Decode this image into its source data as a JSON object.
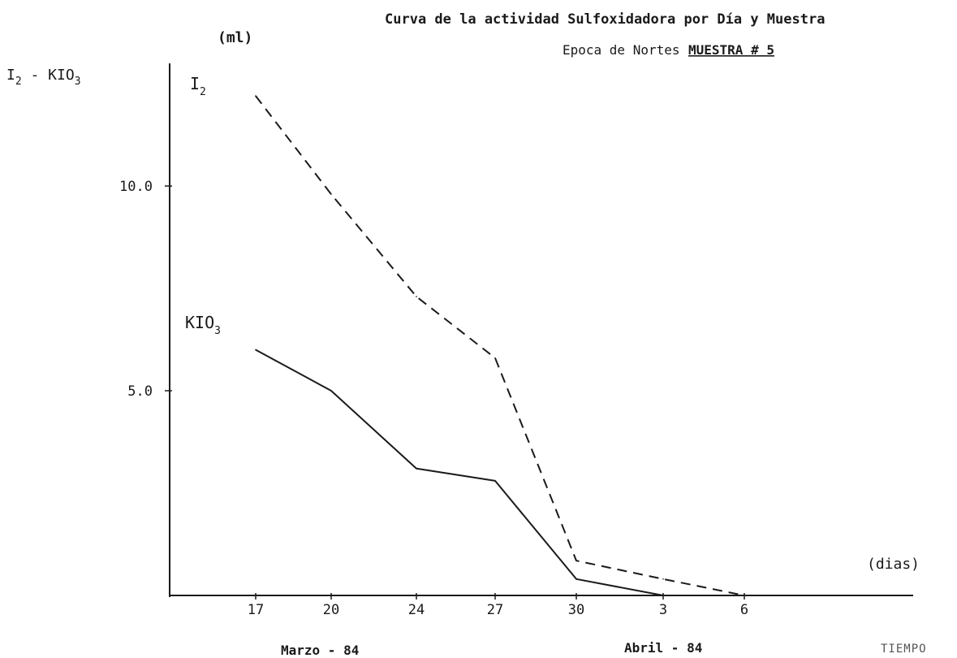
{
  "chart_data": {
    "type": "line",
    "title": "Curva de la actividad Sulfoxidadora por Día y Muestra",
    "subtitle": "Epoca de Nortes",
    "sample_label": "MUESTRA # 5",
    "ylabel": {
      "main": "I",
      "sub1": "2",
      "mid": " - KIO",
      "sub2": "3"
    },
    "yunit": "(ml)",
    "xunit": "(dias)",
    "xlabel": "TIEMPO",
    "month_labels": [
      "Marzo - 84",
      "Abril - 84"
    ],
    "categories": [
      "17",
      "20",
      "24",
      "27",
      "30",
      "3",
      "6"
    ],
    "yticks": [
      "5.0",
      "10.0"
    ],
    "ylim": [
      0,
      13
    ],
    "series": [
      {
        "name": "I",
        "name_sub": "2",
        "style": "dashed",
        "color": "#1a1a1a",
        "values": [
          12.2,
          9.8,
          7.3,
          5.8,
          0.85,
          0.4,
          0.0
        ]
      },
      {
        "name": "KIO",
        "name_sub": "3",
        "style": "solid",
        "color": "#1a1a1a",
        "values": [
          6.0,
          5.0,
          3.1,
          2.8,
          0.4,
          0.0,
          0.0
        ]
      }
    ]
  }
}
